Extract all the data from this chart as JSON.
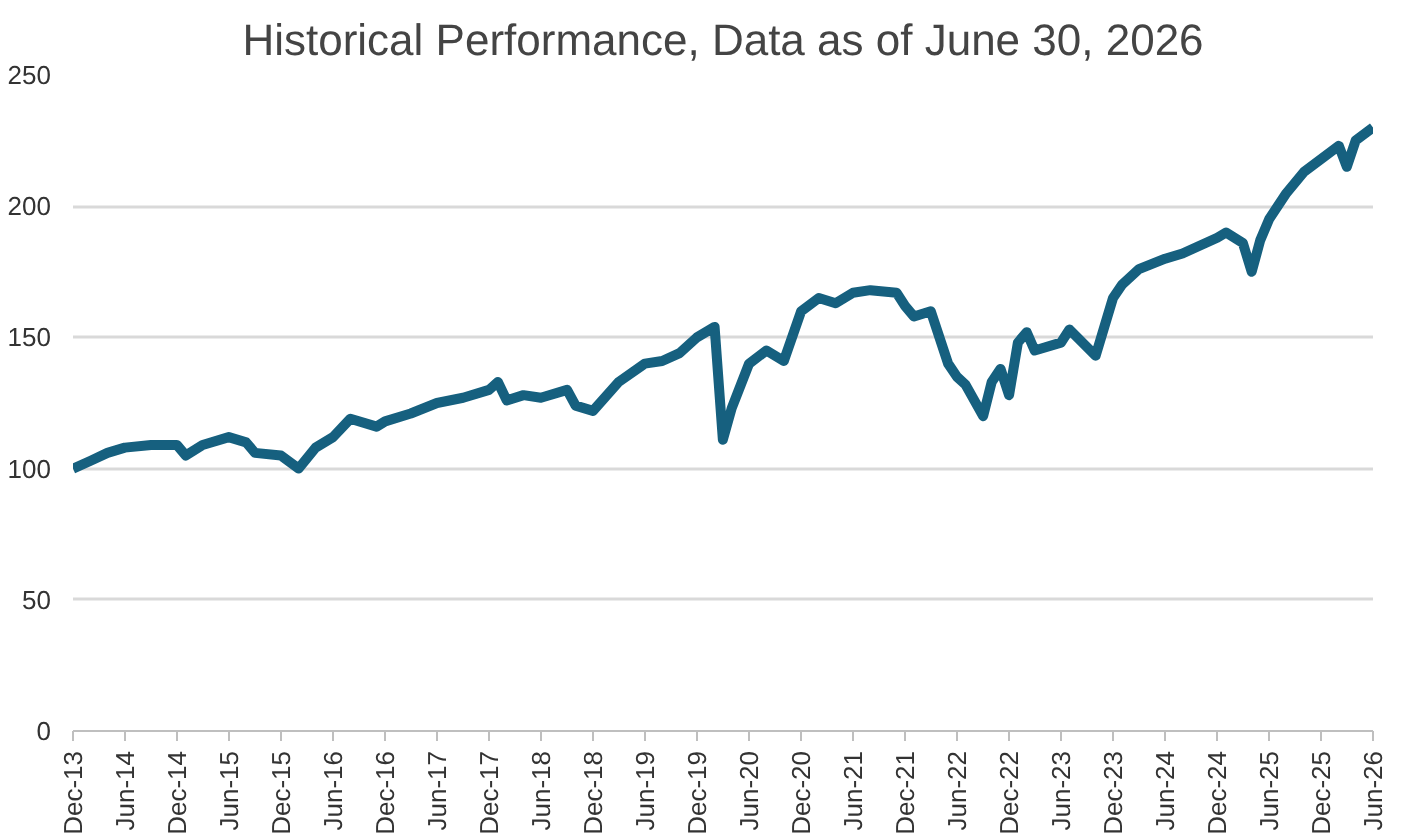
{
  "chart_data": {
    "type": "line",
    "title": "Historical Performance, Data as of June 30, 2026",
    "x": [
      "2013-12",
      "2014-02",
      "2014-04",
      "2014-06",
      "2014-09",
      "2014-12",
      "2015-01",
      "2015-03",
      "2015-06",
      "2015-08",
      "2015-09",
      "2015-12",
      "2016-02",
      "2016-04",
      "2016-06",
      "2016-08",
      "2016-11",
      "2016-12",
      "2017-03",
      "2017-06",
      "2017-09",
      "2017-12",
      "2018-01",
      "2018-02",
      "2018-04",
      "2018-06",
      "2018-09",
      "2018-10",
      "2018-12",
      "2019-03",
      "2019-06",
      "2019-08",
      "2019-10",
      "2019-12",
      "2020-02",
      "2020-03",
      "2020-04",
      "2020-06",
      "2020-08",
      "2020-10",
      "2020-12",
      "2021-02",
      "2021-04",
      "2021-06",
      "2021-08",
      "2021-11",
      "2021-12",
      "2022-01",
      "2022-03",
      "2022-05",
      "2022-06",
      "2022-07",
      "2022-09",
      "2022-10",
      "2022-11",
      "2022-12",
      "2023-01",
      "2023-02",
      "2023-03",
      "2023-06",
      "2023-07",
      "2023-10",
      "2023-12",
      "2024-01",
      "2024-03",
      "2024-06",
      "2024-08",
      "2024-12",
      "2025-01",
      "2025-03",
      "2025-04",
      "2025-05",
      "2025-06",
      "2025-08",
      "2025-10",
      "2025-12",
      "2026-02",
      "2026-03",
      "2026-04",
      "2026-06"
    ],
    "series": [
      {
        "color": "#16607f",
        "values": [
          100,
          103,
          106,
          108,
          109,
          109,
          105,
          109,
          112,
          110,
          106,
          105,
          100,
          108,
          112,
          119,
          116,
          118,
          121,
          125,
          127,
          130,
          133,
          126,
          128,
          127,
          130,
          124,
          122,
          133,
          140,
          141,
          144,
          150,
          154,
          111,
          123,
          140,
          145,
          141,
          160,
          165,
          163,
          167,
          168,
          167,
          162,
          158,
          160,
          140,
          135,
          132,
          120,
          133,
          138,
          128,
          148,
          152,
          145,
          148,
          153,
          143,
          165,
          170,
          176,
          180,
          182,
          188,
          190,
          186,
          175,
          187,
          195,
          205,
          213,
          218,
          223,
          215,
          225,
          230
        ]
      }
    ],
    "xlim": [
      "2013-12",
      "2026-06"
    ],
    "xticks": [
      {
        "value": "2013-12",
        "label": "Dec-13"
      },
      {
        "value": "2014-06",
        "label": "Jun-14"
      },
      {
        "value": "2014-12",
        "label": "Dec-14"
      },
      {
        "value": "2015-06",
        "label": "Jun-15"
      },
      {
        "value": "2015-12",
        "label": "Dec-15"
      },
      {
        "value": "2016-06",
        "label": "Jun-16"
      },
      {
        "value": "2016-12",
        "label": "Dec-16"
      },
      {
        "value": "2017-06",
        "label": "Jun-17"
      },
      {
        "value": "2017-12",
        "label": "Dec-17"
      },
      {
        "value": "2018-06",
        "label": "Jun-18"
      },
      {
        "value": "2018-12",
        "label": "Dec-18"
      },
      {
        "value": "2019-06",
        "label": "Jun-19"
      },
      {
        "value": "2019-12",
        "label": "Dec-19"
      },
      {
        "value": "2020-06",
        "label": "Jun-20"
      },
      {
        "value": "2020-12",
        "label": "Dec-20"
      },
      {
        "value": "2021-06",
        "label": "Jun-21"
      },
      {
        "value": "2021-12",
        "label": "Dec-21"
      },
      {
        "value": "2022-06",
        "label": "Jun-22"
      },
      {
        "value": "2022-12",
        "label": "Dec-22"
      },
      {
        "value": "2023-06",
        "label": "Jun-23"
      },
      {
        "value": "2023-12",
        "label": "Dec-23"
      },
      {
        "value": "2024-06",
        "label": "Jun-24"
      },
      {
        "value": "2024-12",
        "label": "Dec-24"
      },
      {
        "value": "2025-06",
        "label": "Jun-25"
      },
      {
        "value": "2025-12",
        "label": "Dec-25"
      },
      {
        "value": "2026-06",
        "label": "Jun-26"
      }
    ],
    "ylim": [
      0,
      250
    ],
    "yticks": [
      0,
      50,
      100,
      150,
      200,
      250
    ],
    "grid": "y",
    "line_style": "solid"
  }
}
